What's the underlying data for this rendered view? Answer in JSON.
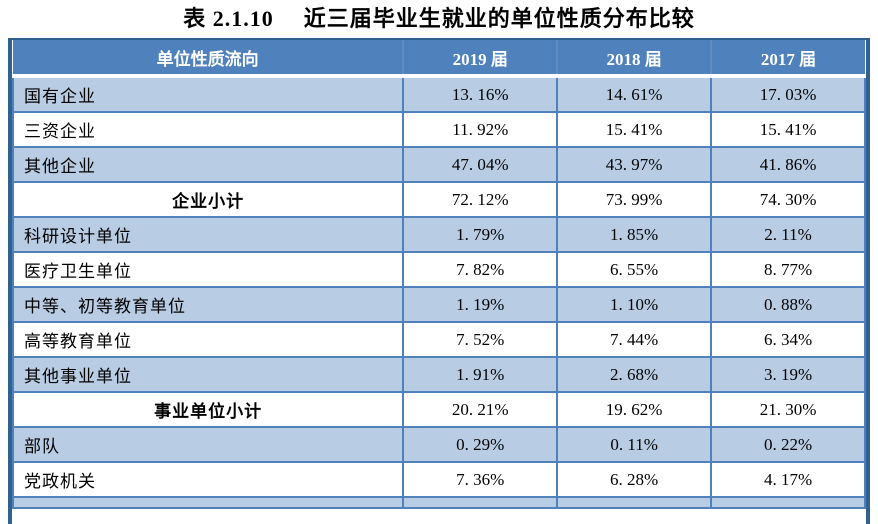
{
  "title": {
    "prefix": "表 2.1.10",
    "main": "近三届毕业生就业的单位性质分布比较"
  },
  "table": {
    "columns": [
      "单位性质流向",
      "2019 届",
      "2018 届",
      "2017 届"
    ],
    "rows": [
      {
        "label": "国有企业",
        "values": [
          "13. 16%",
          "14. 61%",
          "17. 03%"
        ],
        "type": "data",
        "shade": "blue"
      },
      {
        "label": "三资企业",
        "values": [
          "11. 92%",
          "15. 41%",
          "15. 41%"
        ],
        "type": "data",
        "shade": "white"
      },
      {
        "label": "其他企业",
        "values": [
          "47. 04%",
          "43. 97%",
          "41. 86%"
        ],
        "type": "data",
        "shade": "blue"
      },
      {
        "label": "企业小计",
        "values": [
          "72. 12%",
          "73. 99%",
          "74. 30%"
        ],
        "type": "subtotal",
        "shade": "white"
      },
      {
        "label": "科研设计单位",
        "values": [
          "1. 79%",
          "1. 85%",
          "2. 11%"
        ],
        "type": "data",
        "shade": "blue"
      },
      {
        "label": "医疗卫生单位",
        "values": [
          "7. 82%",
          "6. 55%",
          "8. 77%"
        ],
        "type": "data",
        "shade": "white"
      },
      {
        "label": "中等、初等教育单位",
        "values": [
          "1. 19%",
          "1. 10%",
          "0. 88%"
        ],
        "type": "data",
        "shade": "blue"
      },
      {
        "label": "高等教育单位",
        "values": [
          "7. 52%",
          "7. 44%",
          "6. 34%"
        ],
        "type": "data",
        "shade": "white"
      },
      {
        "label": "其他事业单位",
        "values": [
          "1. 91%",
          "2. 68%",
          "3. 19%"
        ],
        "type": "data",
        "shade": "blue"
      },
      {
        "label": "事业单位小计",
        "values": [
          "20. 21%",
          "19. 62%",
          "21. 30%"
        ],
        "type": "subtotal",
        "shade": "white"
      },
      {
        "label": "部队",
        "values": [
          "0. 29%",
          "0. 11%",
          "0. 22%"
        ],
        "type": "data",
        "shade": "blue"
      },
      {
        "label": "党政机关",
        "values": [
          "7. 36%",
          "6. 28%",
          "4. 17%"
        ],
        "type": "data",
        "shade": "white"
      }
    ]
  },
  "colors": {
    "header_bg": "#4f81bd",
    "header_text": "#ffffff",
    "row_blue": "#b8cce4",
    "row_white": "#ffffff",
    "cell_border": "#4f81bd",
    "outer_border": "#31618f",
    "body_text": "#000000"
  }
}
